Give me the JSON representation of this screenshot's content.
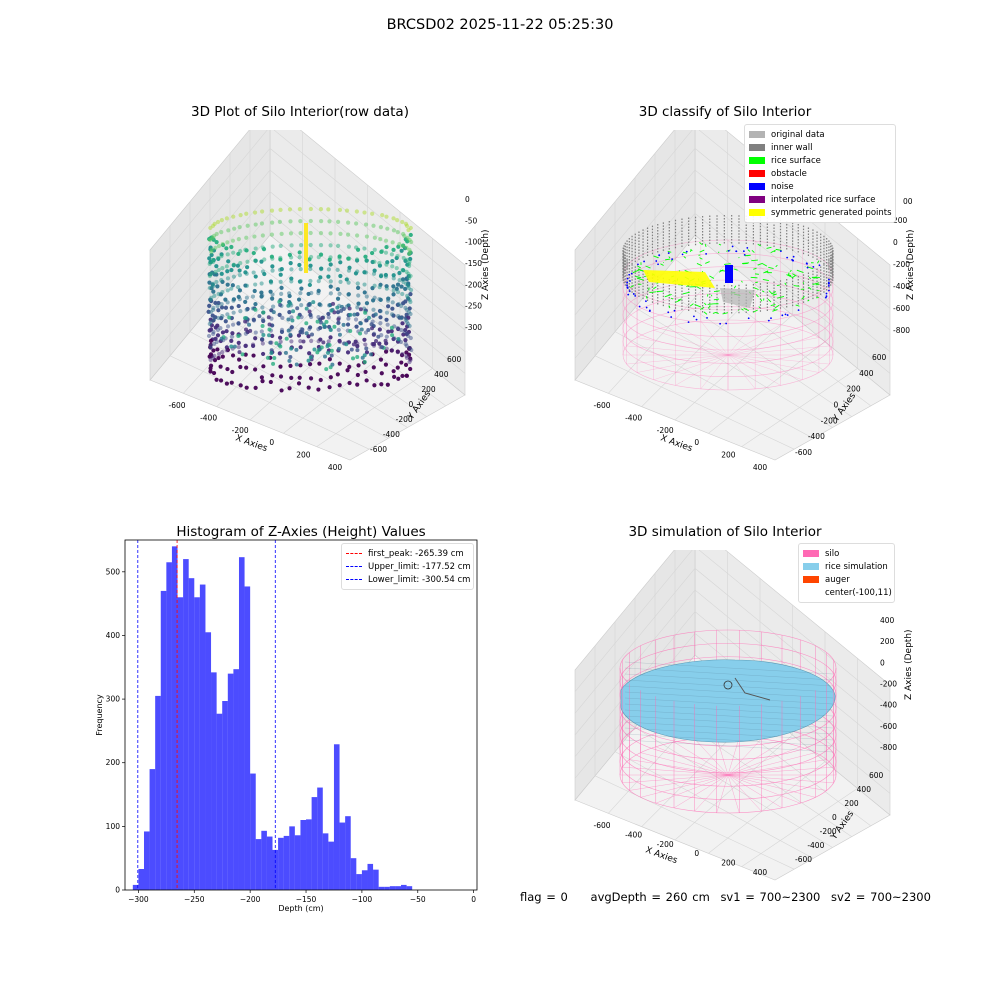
{
  "suptitle": "BRCSD02 2025-11-22 05:25:30",
  "panels": {
    "raw": {
      "title": "3D Plot of Silo Interior(row data)",
      "xlabel": "X Axies",
      "ylabel": "Y Axies",
      "zlabel": "Z Axies (Depth)",
      "xticks": [
        "-600",
        "-400",
        "-200",
        "0",
        "200",
        "400"
      ],
      "yticks": [
        "-600",
        "-400",
        "-200",
        "0",
        "200",
        "400",
        "600"
      ],
      "zticks": [
        "0",
        "-50",
        "-100",
        "-150",
        "-200",
        "-250",
        "-300"
      ]
    },
    "classify": {
      "title": "3D classify of Silo Interior",
      "xlabel": "X Axies",
      "ylabel": "Y Axies",
      "zlabel": "Z Axies (Depth)",
      "xticks": [
        "-600",
        "-400",
        "-200",
        "0",
        "200",
        "400"
      ],
      "yticks": [
        "-600",
        "-400",
        "-200",
        "0",
        "200",
        "400",
        "600"
      ],
      "zticks": [
        "200",
        "0",
        "-200",
        "-400",
        "-600",
        "-800"
      ],
      "zticks_top_partial": "00",
      "legend": [
        {
          "label": "original data",
          "color": "#b3b3b3"
        },
        {
          "label": "inner wall",
          "color": "#808080"
        },
        {
          "label": "rice surface",
          "color": "#00ff00"
        },
        {
          "label": "obstacle",
          "color": "#ff0000"
        },
        {
          "label": "noise",
          "color": "#0000ff"
        },
        {
          "label": "interpolated rice surface",
          "color": "#800080"
        },
        {
          "label": "symmetric generated points",
          "color": "#ffff00"
        }
      ]
    },
    "simulation": {
      "title": "3D simulation of Silo Interior",
      "xlabel": "X Axies",
      "ylabel": "Y Axies",
      "zlabel": "Z Axies (Depth)",
      "xticks": [
        "-600",
        "-400",
        "-200",
        "0",
        "200",
        "400"
      ],
      "yticks": [
        "-600",
        "-400",
        "-200",
        "0",
        "200",
        "400",
        "600"
      ],
      "zticks": [
        "400",
        "200",
        "0",
        "-200",
        "-400",
        "-600",
        "-800"
      ],
      "legend": [
        {
          "label": "silo",
          "color": "#ff69b4"
        },
        {
          "label": "rice simulation",
          "color": "#87ceeb"
        },
        {
          "label": "auger",
          "color": "#ff4500"
        },
        {
          "label": "center(-100,11)",
          "color": ""
        }
      ]
    }
  },
  "footer": {
    "flag": "flag = 0",
    "avgdepth": "avgDepth = 260 cm",
    "sv1": "sv1 = 700~2300",
    "sv2": "sv2 = 700~2300"
  },
  "chart_data": [
    {
      "type": "bar",
      "title": "Histogram of Z-Axies (Height) Values",
      "xlabel": "Depth (cm)",
      "ylabel": "Frequency",
      "xlim": [
        -312,
        3
      ],
      "ylim": [
        0,
        550
      ],
      "xticks": [
        -300,
        -250,
        -200,
        -150,
        -100,
        -50,
        0
      ],
      "yticks": [
        0,
        100,
        200,
        300,
        400,
        500
      ],
      "bar_color": "#0000ff",
      "bar_alpha": 0.7,
      "bin_width": 5,
      "bins": [
        {
          "x0": -305,
          "count": 8
        },
        {
          "x0": -300,
          "count": 33
        },
        {
          "x0": -295,
          "count": 92
        },
        {
          "x0": -290,
          "count": 190
        },
        {
          "x0": -285,
          "count": 305
        },
        {
          "x0": -280,
          "count": 470
        },
        {
          "x0": -275,
          "count": 515
        },
        {
          "x0": -270,
          "count": 540
        },
        {
          "x0": -265,
          "count": 460
        },
        {
          "x0": -260,
          "count": 520
        },
        {
          "x0": -255,
          "count": 490
        },
        {
          "x0": -250,
          "count": 460
        },
        {
          "x0": -245,
          "count": 480
        },
        {
          "x0": -240,
          "count": 405
        },
        {
          "x0": -235,
          "count": 342
        },
        {
          "x0": -230,
          "count": 277
        },
        {
          "x0": -225,
          "count": 297
        },
        {
          "x0": -220,
          "count": 340
        },
        {
          "x0": -215,
          "count": 347
        },
        {
          "x0": -210,
          "count": 523
        },
        {
          "x0": -205,
          "count": 477
        },
        {
          "x0": -200,
          "count": 183
        },
        {
          "x0": -195,
          "count": 80
        },
        {
          "x0": -190,
          "count": 93
        },
        {
          "x0": -185,
          "count": 84
        },
        {
          "x0": -180,
          "count": 63
        },
        {
          "x0": -175,
          "count": 82
        },
        {
          "x0": -170,
          "count": 85
        },
        {
          "x0": -165,
          "count": 100
        },
        {
          "x0": -160,
          "count": 86
        },
        {
          "x0": -155,
          "count": 110
        },
        {
          "x0": -150,
          "count": 111
        },
        {
          "x0": -145,
          "count": 146
        },
        {
          "x0": -140,
          "count": 161
        },
        {
          "x0": -135,
          "count": 89
        },
        {
          "x0": -130,
          "count": 76
        },
        {
          "x0": -125,
          "count": 229
        },
        {
          "x0": -120,
          "count": 106
        },
        {
          "x0": -115,
          "count": 116
        },
        {
          "x0": -110,
          "count": 50
        },
        {
          "x0": -105,
          "count": 25
        },
        {
          "x0": -100,
          "count": 31
        },
        {
          "x0": -95,
          "count": 41
        },
        {
          "x0": -90,
          "count": 32
        },
        {
          "x0": -85,
          "count": 5
        },
        {
          "x0": -80,
          "count": 5
        },
        {
          "x0": -75,
          "count": 6
        },
        {
          "x0": -70,
          "count": 6
        },
        {
          "x0": -65,
          "count": 8
        },
        {
          "x0": -60,
          "count": 6
        }
      ],
      "vlines": [
        {
          "label": "first_peak: -265.39 cm",
          "x": -265.39,
          "color": "#ff0000"
        },
        {
          "label": "Upper_limit: -177.52 cm",
          "x": -177.52,
          "color": "#0000ff"
        },
        {
          "label": "Lower_limit: -300.54 cm",
          "x": -300.54,
          "color": "#0000ff"
        }
      ],
      "legend_position": "top-right"
    }
  ]
}
